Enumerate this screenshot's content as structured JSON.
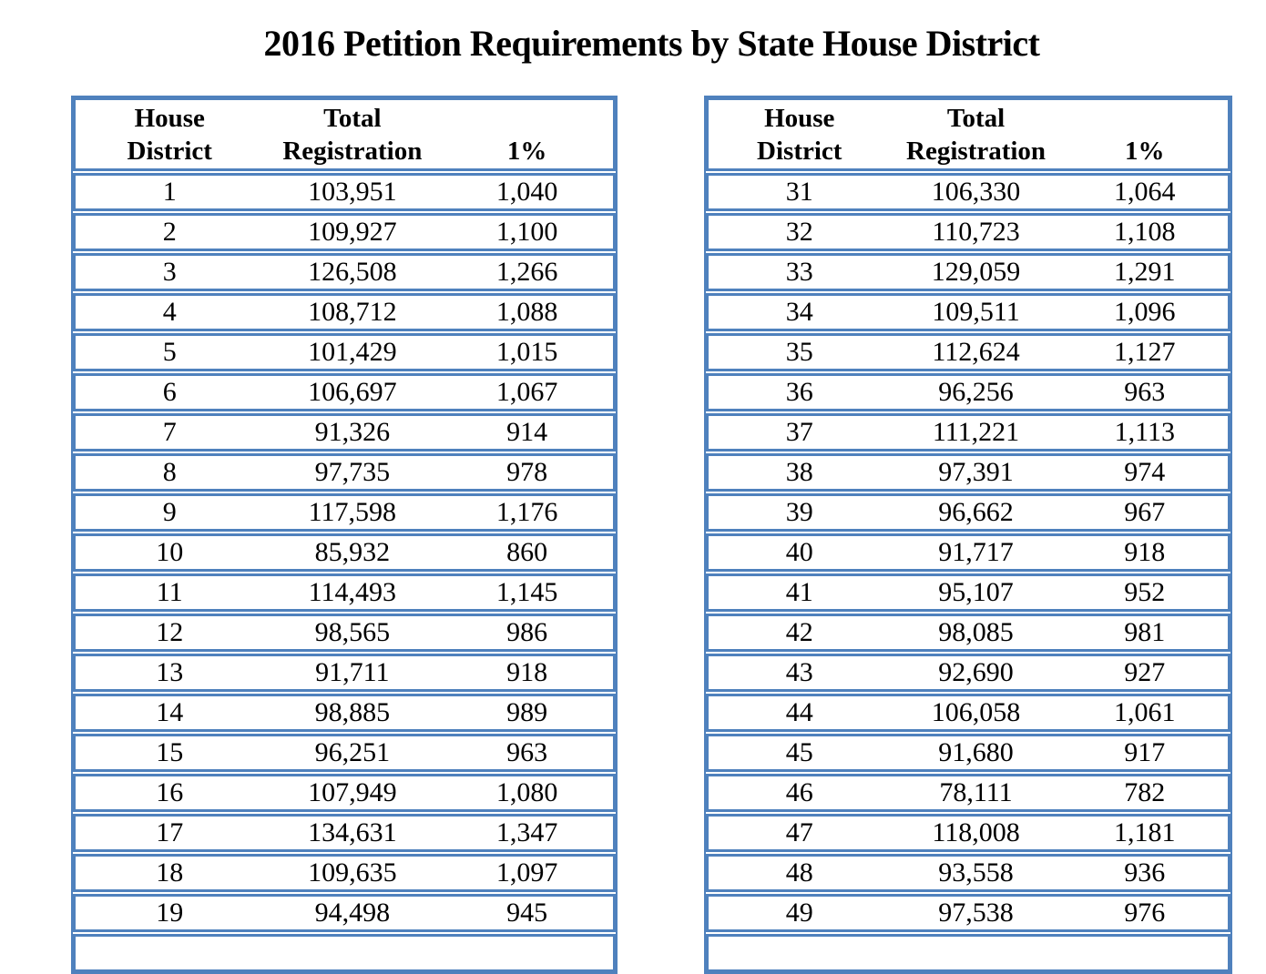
{
  "page": {
    "title": "2016 Petition Requirements by State House District"
  },
  "table_headers": {
    "house": "House",
    "district": "District",
    "total": "Total",
    "registration": "Registration",
    "one_percent": "1%"
  },
  "colors": {
    "table_border_blue": "#4F81BD",
    "text_black": "#000000",
    "page_background": "#FFFFFF"
  },
  "tables": [
    {
      "name": "house-districts-1-19",
      "rows": [
        {
          "district": "1",
          "registration": "103,951",
          "one_percent": "1,040"
        },
        {
          "district": "2",
          "registration": "109,927",
          "one_percent": "1,100"
        },
        {
          "district": "3",
          "registration": "126,508",
          "one_percent": "1,266"
        },
        {
          "district": "4",
          "registration": "108,712",
          "one_percent": "1,088"
        },
        {
          "district": "5",
          "registration": "101,429",
          "one_percent": "1,015"
        },
        {
          "district": "6",
          "registration": "106,697",
          "one_percent": "1,067"
        },
        {
          "district": "7",
          "registration": "91,326",
          "one_percent": "914"
        },
        {
          "district": "8",
          "registration": "97,735",
          "one_percent": "978"
        },
        {
          "district": "9",
          "registration": "117,598",
          "one_percent": "1,176"
        },
        {
          "district": "10",
          "registration": "85,932",
          "one_percent": "860"
        },
        {
          "district": "11",
          "registration": "114,493",
          "one_percent": "1,145"
        },
        {
          "district": "12",
          "registration": "98,565",
          "one_percent": "986"
        },
        {
          "district": "13",
          "registration": "91,711",
          "one_percent": "918"
        },
        {
          "district": "14",
          "registration": "98,885",
          "one_percent": "989"
        },
        {
          "district": "15",
          "registration": "96,251",
          "one_percent": "963"
        },
        {
          "district": "16",
          "registration": "107,949",
          "one_percent": "1,080"
        },
        {
          "district": "17",
          "registration": "134,631",
          "one_percent": "1,347"
        },
        {
          "district": "18",
          "registration": "109,635",
          "one_percent": "1,097"
        },
        {
          "district": "19",
          "registration": "94,498",
          "one_percent": "945"
        }
      ]
    },
    {
      "name": "house-districts-31-49",
      "rows": [
        {
          "district": "31",
          "registration": "106,330",
          "one_percent": "1,064"
        },
        {
          "district": "32",
          "registration": "110,723",
          "one_percent": "1,108"
        },
        {
          "district": "33",
          "registration": "129,059",
          "one_percent": "1,291"
        },
        {
          "district": "34",
          "registration": "109,511",
          "one_percent": "1,096"
        },
        {
          "district": "35",
          "registration": "112,624",
          "one_percent": "1,127"
        },
        {
          "district": "36",
          "registration": "96,256",
          "one_percent": "963"
        },
        {
          "district": "37",
          "registration": "111,221",
          "one_percent": "1,113"
        },
        {
          "district": "38",
          "registration": "97,391",
          "one_percent": "974"
        },
        {
          "district": "39",
          "registration": "96,662",
          "one_percent": "967"
        },
        {
          "district": "40",
          "registration": "91,717",
          "one_percent": "918"
        },
        {
          "district": "41",
          "registration": "95,107",
          "one_percent": "952"
        },
        {
          "district": "42",
          "registration": "98,085",
          "one_percent": "981"
        },
        {
          "district": "43",
          "registration": "92,690",
          "one_percent": "927"
        },
        {
          "district": "44",
          "registration": "106,058",
          "one_percent": "1,061"
        },
        {
          "district": "45",
          "registration": "91,680",
          "one_percent": "917"
        },
        {
          "district": "46",
          "registration": "78,111",
          "one_percent": "782"
        },
        {
          "district": "47",
          "registration": "118,008",
          "one_percent": "1,181"
        },
        {
          "district": "48",
          "registration": "93,558",
          "one_percent": "936"
        },
        {
          "district": "49",
          "registration": "97,538",
          "one_percent": "976"
        }
      ]
    }
  ]
}
